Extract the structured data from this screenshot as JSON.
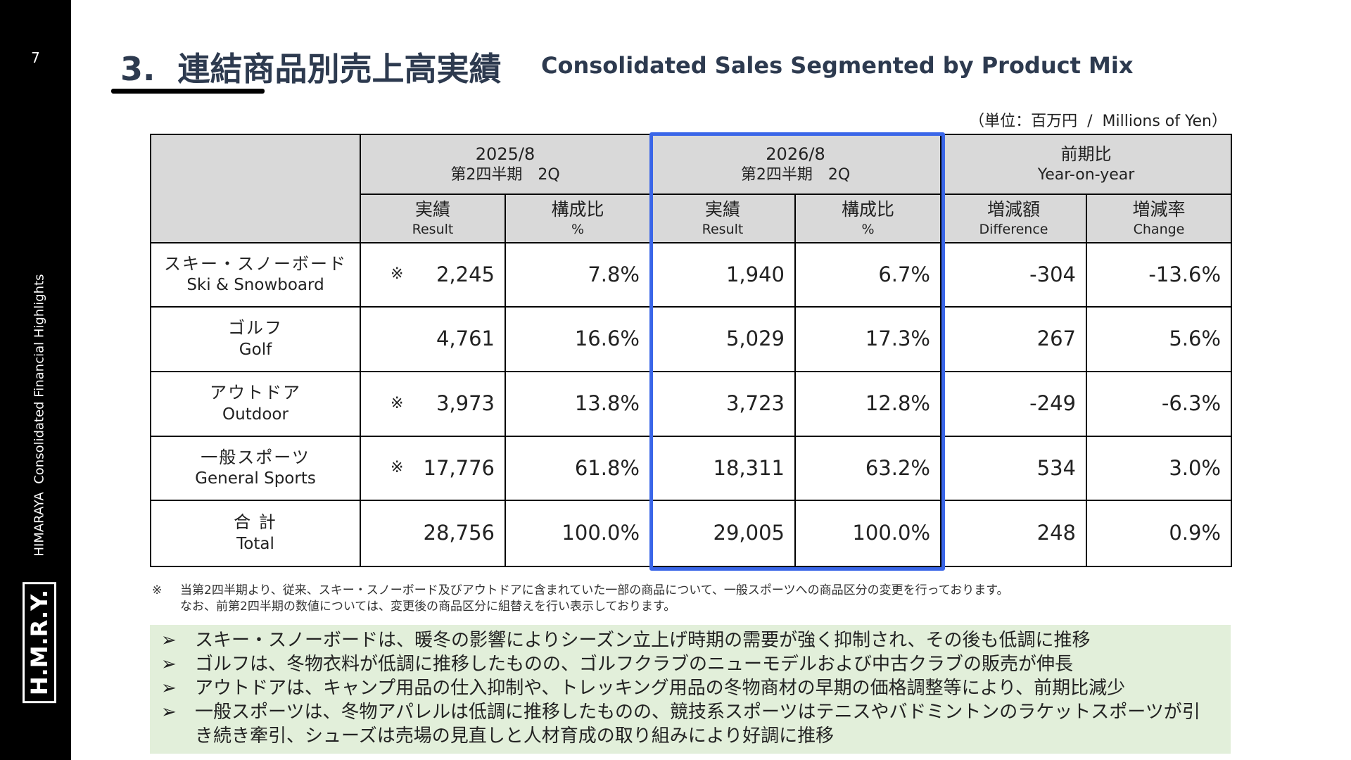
{
  "sidebar": {
    "page_number": "7",
    "caption": "HIMARAYA  Consolidated Financial Highlights",
    "logo": "H.M.R.Y."
  },
  "header": {
    "title": "3.  連結商品別売上高実績",
    "title_en": "Consolidated Sales Segmented by Product Mix",
    "unit": "（単位：百万円  /  Millions of Yen）"
  },
  "table": {
    "groups": [
      {
        "line1": "2025/8",
        "line2": "第2四半期　2Q"
      },
      {
        "line1": "2026/8",
        "line2": "第2四半期　2Q"
      },
      {
        "line1": "前期比",
        "line2": "Year-on-year"
      }
    ],
    "subheaders": [
      {
        "ja": "実績",
        "en": "Result"
      },
      {
        "ja": "構成比",
        "en": "%"
      },
      {
        "ja": "実績",
        "en": "Result"
      },
      {
        "ja": "構成比",
        "en": "%"
      },
      {
        "ja": "増減額",
        "en": "Difference"
      },
      {
        "ja": "増減率",
        "en": "Change"
      }
    ],
    "rows": [
      {
        "label_ja": "スキー・スノーボード",
        "label_en": "Ski & Snowboard",
        "note": "※",
        "values": [
          "2,245",
          "7.8%",
          "1,940",
          "6.7%",
          "-304",
          "-13.6%"
        ]
      },
      {
        "label_ja": "ゴルフ",
        "label_en": "Golf",
        "values": [
          "4,761",
          "16.6%",
          "5,029",
          "17.3%",
          "267",
          "5.6%"
        ]
      },
      {
        "label_ja": "アウトドア",
        "label_en": "Outdoor",
        "note": "※",
        "values": [
          "3,973",
          "13.8%",
          "3,723",
          "12.8%",
          "-249",
          "-6.3%"
        ]
      },
      {
        "label_ja": "一般スポーツ",
        "label_en": "General Sports",
        "note": "※",
        "values": [
          "17,776",
          "61.8%",
          "18,311",
          "63.2%",
          "534",
          "3.0%"
        ]
      },
      {
        "label_ja": "合 計",
        "label_en": "Total",
        "values": [
          "28,756",
          "100.0%",
          "29,005",
          "100.0%",
          "248",
          "0.9%"
        ]
      }
    ]
  },
  "footnote": {
    "mark": "※",
    "line1": "当第2四半期より、従来、スキー・スノーボード及びアウトドアに含まれていた一部の商品について、一般スポーツへの商品区分の変更を行っております。",
    "line2": "なお、前第2四半期の数値については、変更後の商品区分に組替えを行い表示しております。"
  },
  "bullets": [
    "スキー・スノーボードは、暖冬の影響によりシーズン立上げ時期の需要が強く抑制され、その後も低調に推移",
    "ゴルフは、冬物衣料が低調に推移したものの、ゴルフクラブのニューモデルおよび中古クラブの販売が伸長",
    "アウトドアは、キャンプ用品の仕入抑制や、トレッキング用品の冬物商材の早期の価格調整等により、前期比減少",
    "一般スポーツは、冬物アパレルは低調に推移したものの、競技系スポーツはテニスやバドミントンのラケットスポーツが引き続き牽引、シューズは売場の見直しと人材育成の取り組みにより好調に推移"
  ]
}
